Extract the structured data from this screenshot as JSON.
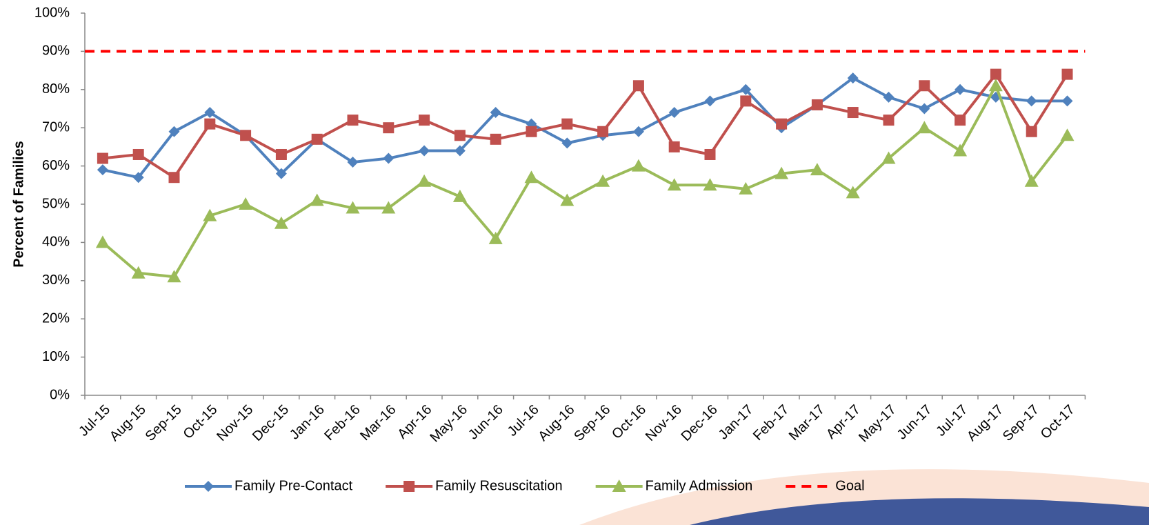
{
  "chart_data": {
    "type": "line",
    "y_label": "Percent of Families",
    "categories": [
      "Jul-15",
      "Aug-15",
      "Sep-15",
      "Oct-15",
      "Nov-15",
      "Dec-15",
      "Jan-16",
      "Feb-16",
      "Mar-16",
      "Apr-16",
      "May-16",
      "Jun-16",
      "Jul-16",
      "Aug-16",
      "Sep-16",
      "Oct-16",
      "Nov-16",
      "Dec-16",
      "Jan-17",
      "Feb-17",
      "Mar-17",
      "Apr-17",
      "May-17",
      "Jun-17",
      "Jul-17",
      "Aug-17",
      "Sep-17",
      "Oct-17"
    ],
    "series": [
      {
        "name": "Family Pre-Contact",
        "color": "#4f81bd",
        "marker": "diamond",
        "values": [
          59,
          57,
          69,
          74,
          68,
          58,
          67,
          61,
          62,
          64,
          64,
          74,
          71,
          66,
          68,
          69,
          74,
          77,
          80,
          70,
          76,
          83,
          78,
          75,
          80,
          78,
          77,
          77
        ]
      },
      {
        "name": "Family Resuscitation",
        "color": "#c0504d",
        "marker": "square",
        "values": [
          62,
          63,
          57,
          71,
          68,
          63,
          67,
          72,
          70,
          72,
          68,
          67,
          69,
          71,
          69,
          81,
          65,
          63,
          77,
          71,
          76,
          74,
          72,
          81,
          72,
          84,
          69,
          84
        ]
      },
      {
        "name": "Family Admission",
        "color": "#9bbb59",
        "marker": "triangle",
        "values": [
          40,
          32,
          31,
          47,
          50,
          45,
          51,
          49,
          49,
          56,
          52,
          41,
          57,
          51,
          56,
          60,
          55,
          55,
          54,
          58,
          59,
          53,
          62,
          70,
          64,
          81,
          56,
          68
        ]
      }
    ],
    "goal": {
      "name": "Goal",
      "value": 90,
      "color": "#ff0000"
    },
    "ylim": [
      0,
      100
    ],
    "yticks": [
      {
        "value": 0,
        "label": "0%"
      },
      {
        "value": 10,
        "label": "10%"
      },
      {
        "value": 20,
        "label": "20%"
      },
      {
        "value": 30,
        "label": "30%"
      },
      {
        "value": 40,
        "label": "40%"
      },
      {
        "value": 50,
        "label": "50%"
      },
      {
        "value": 60,
        "label": "60%"
      },
      {
        "value": 70,
        "label": "70%"
      },
      {
        "value": 80,
        "label": "80%"
      },
      {
        "value": 90,
        "label": "90%"
      },
      {
        "value": 100,
        "label": "100%"
      }
    ],
    "legend": "bottom"
  }
}
